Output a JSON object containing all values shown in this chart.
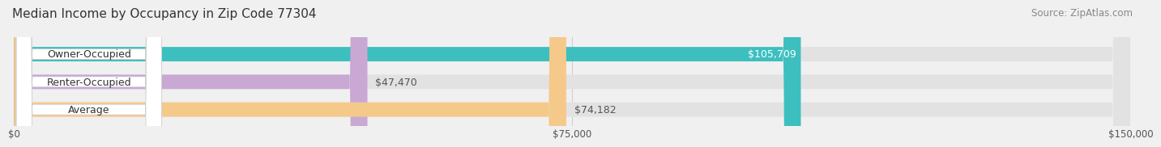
{
  "title": "Median Income by Occupancy in Zip Code 77304",
  "source": "Source: ZipAtlas.com",
  "categories": [
    "Owner-Occupied",
    "Renter-Occupied",
    "Average"
  ],
  "values": [
    105709,
    47470,
    74182
  ],
  "bar_colors": [
    "#3dbfbf",
    "#c9a8d4",
    "#f5c98a"
  ],
  "value_labels": [
    "$105,709",
    "$47,470",
    "$74,182"
  ],
  "xlim": [
    0,
    150000
  ],
  "xticks": [
    0,
    75000,
    150000
  ],
  "xtick_labels": [
    "$0",
    "$75,000",
    "$150,000"
  ],
  "background_color": "#f0f0f0",
  "bar_bg_color": "#e2e2e2",
  "title_fontsize": 11,
  "source_fontsize": 8.5,
  "label_fontsize": 9,
  "value_fontsize": 9,
  "bar_height": 0.52
}
